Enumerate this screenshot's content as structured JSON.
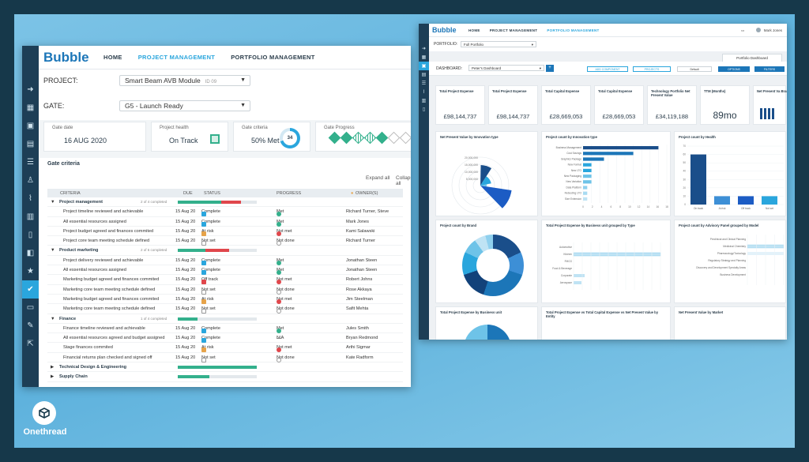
{
  "win1": {
    "logo": "Bubble",
    "nav": [
      "HOME",
      "PROJECT MANAGEMENT",
      "PORTFOLIO MANAGEMENT"
    ],
    "project_label": "PROJECT:",
    "project_value": "Smart Beam AVB Module",
    "project_id": "ID 09",
    "gate_label": "GATE:",
    "gate_value": "G5 - Launch Ready",
    "cards": {
      "gate_date_title": "Gate date",
      "gate_date": "16 AUG 2020",
      "health_title": "Project health",
      "health": "On Track",
      "criteria_title": "Gate criteria",
      "criteria_met": "50% Met",
      "criteria_count": "34",
      "progress_title": "Gate Progress"
    },
    "gate_criteria_title": "Gate criteria",
    "expand_all": "Expand all",
    "collapse_all": "Collapse all",
    "columns": [
      "CRITERIA",
      "DUE",
      "STATUS",
      "PROGRESS",
      "OWNER(S)"
    ],
    "groups": [
      {
        "name": "Project management",
        "count": "2 of 4 completed",
        "rows": [
          {
            "c": "Project timeline reviewed and achievable",
            "d": "15 Aug 20",
            "s": "Complete",
            "p": "Met",
            "o": "Richard Turner, Steve"
          },
          {
            "c": "All essential resources assigned",
            "d": "15 Aug 20",
            "s": "Complete",
            "p": "Met",
            "o": "Mark Jones"
          },
          {
            "c": "Project budget agreed and finances commited",
            "d": "15 Aug 20",
            "s": "At risk",
            "p": "Not met",
            "o": "Kami Salawski"
          },
          {
            "c": "Project core team meeting schedule defined",
            "d": "15 Aug 20",
            "s": "Not set",
            "p": "Not done",
            "o": "Richard Turner"
          }
        ]
      },
      {
        "name": "Product marketing",
        "count": "2 of 6 completed",
        "rows": [
          {
            "c": "Project delivery reviewed and achievable",
            "d": "15 Aug 20",
            "s": "Complete",
            "p": "Met",
            "o": "Jonathan Steen"
          },
          {
            "c": "All essential resources assigned",
            "d": "15 Aug 20",
            "s": "Complete",
            "p": "Met",
            "o": "Jonathan Steen"
          },
          {
            "c": "Marketing budget agreed and finances commited",
            "d": "15 Aug 20",
            "s": "Off track",
            "p": "Not met",
            "o": "Robert Johns"
          },
          {
            "c": "Marketing core team meeting schedule defined",
            "d": "15 Aug 20",
            "s": "Not set",
            "p": "Not done",
            "o": "Rose Akkaya"
          },
          {
            "c": "Marketing budget agreed and finances commited",
            "d": "15 Aug 20",
            "s": "At risk",
            "p": "Not met",
            "o": "Jim Steelman"
          },
          {
            "c": "Marketing core team meeting schedule defined",
            "d": "15 Aug 20",
            "s": "Not set",
            "p": "Not done",
            "o": "Safit Mehta"
          }
        ]
      },
      {
        "name": "Finance",
        "count": "1 of 4 completed",
        "rows": [
          {
            "c": "Finance timeline reviewed and achievable",
            "d": "15 Aug 20",
            "s": "Complete",
            "p": "Met",
            "o": "Jules Smith"
          },
          {
            "c": "All essential resources agreed and budget assigned",
            "d": "15 Aug 20",
            "s": "Complete",
            "p": "N/A",
            "o": "Bryan Redmond"
          },
          {
            "c": "Stage finances commited",
            "d": "15 Aug 20",
            "s": "At risk",
            "p": "Not met",
            "o": "Arthi Sigmar"
          },
          {
            "c": "Financial returns plan checked and signed off",
            "d": "15 Aug 20",
            "s": "Not set",
            "p": "Not done",
            "o": "Kate Radform"
          }
        ]
      }
    ],
    "collapsed_groups": [
      "Technical Design & Engineering",
      "Supply Chain"
    ]
  },
  "win2": {
    "logo": "Bubble",
    "nav": [
      "HOME",
      "PROJECT MANAGEMENT",
      "PORTFOLIO MANAGEMENT"
    ],
    "user": "Mark Jones",
    "portfolio_label": "PORTFOLIO:",
    "portfolio_value": "Full Portfolio",
    "tab": "Portfolio Dashboard",
    "dashboard_label": "DASHBOARD:",
    "dashboard_value": "Peter's Dashboard",
    "buttons": [
      "ADD COMPONENT",
      "PROJECTS",
      "Default",
      "OPTIONS",
      "FILTERS"
    ],
    "kpis": [
      {
        "t": "Total Project Expense",
        "v": "£98,144,737"
      },
      {
        "t": "Total Project Expense",
        "v": "£98,144,737"
      },
      {
        "t": "Total Capital Expense",
        "v": "£28,669,053"
      },
      {
        "t": "Total Capital Expense",
        "v": "£28,669,053"
      },
      {
        "t": "Technology Portfolio Net Present Value",
        "v": "£34,119,188"
      },
      {
        "t": "TTM (Months)",
        "v": "89mo"
      },
      {
        "t": "Net Present Va Brand",
        "v": ""
      }
    ],
    "panels": {
      "p1": "Net Present Value by Innovation type",
      "p2": "Project count by Innovation type",
      "p3": "Project count by Health",
      "p4": "Project count by Brand",
      "p5": "Total Project Expense by Business unit grouped by Type",
      "p6": "Project count by Advisory Panel grouped by Model",
      "p7": "Total Project Expense by Business unit",
      "p8": "Total Project Expense vs Total Capital Expense vs Net Present Value by Entity",
      "p9": "Net Present Value by Market"
    },
    "innovation_types": [
      "Business Management",
      "Cost Savings",
      "Graphics Package",
      "New Format",
      "New LTO",
      "New Packaging",
      "New Variation",
      "Data Platform",
      "Rebooting LTO",
      "Size Extension"
    ],
    "innovation_counts": [
      18,
      12,
      5,
      2,
      2,
      2,
      2,
      1,
      1,
      1
    ],
    "health_labels": [
      "On track",
      "At risk",
      "Off track",
      "Not set"
    ],
    "health_counts": [
      60,
      10,
      10,
      10
    ],
    "bu_types": [
      "Automotive",
      "Kitchen",
      "FMCG",
      "Food & Beverage",
      "Corporate",
      "Aerospace"
    ],
    "advisory": [
      "Preclinical and Clinical Planning",
      "Medicinal Chemistry",
      "Pharmacology/Toxicology",
      "Regulatory Strategy and Planning",
      "Discovery and Development Specialty Areas",
      "Business Development"
    ],
    "npv_ticks": [
      "20,000,000",
      "15,000,000",
      "10,000,000",
      "5,000,000"
    ],
    "count_ticks": [
      "0",
      "2",
      "4",
      "6",
      "8",
      "10",
      "12",
      "14",
      "16",
      "18"
    ]
  },
  "badge": "Onethread",
  "colors": {
    "accent": "#2aa6dd",
    "sidebar": "#1d3e56",
    "green": "#33b08c",
    "red": "#e0474c",
    "navy": "#1a4e8a"
  }
}
